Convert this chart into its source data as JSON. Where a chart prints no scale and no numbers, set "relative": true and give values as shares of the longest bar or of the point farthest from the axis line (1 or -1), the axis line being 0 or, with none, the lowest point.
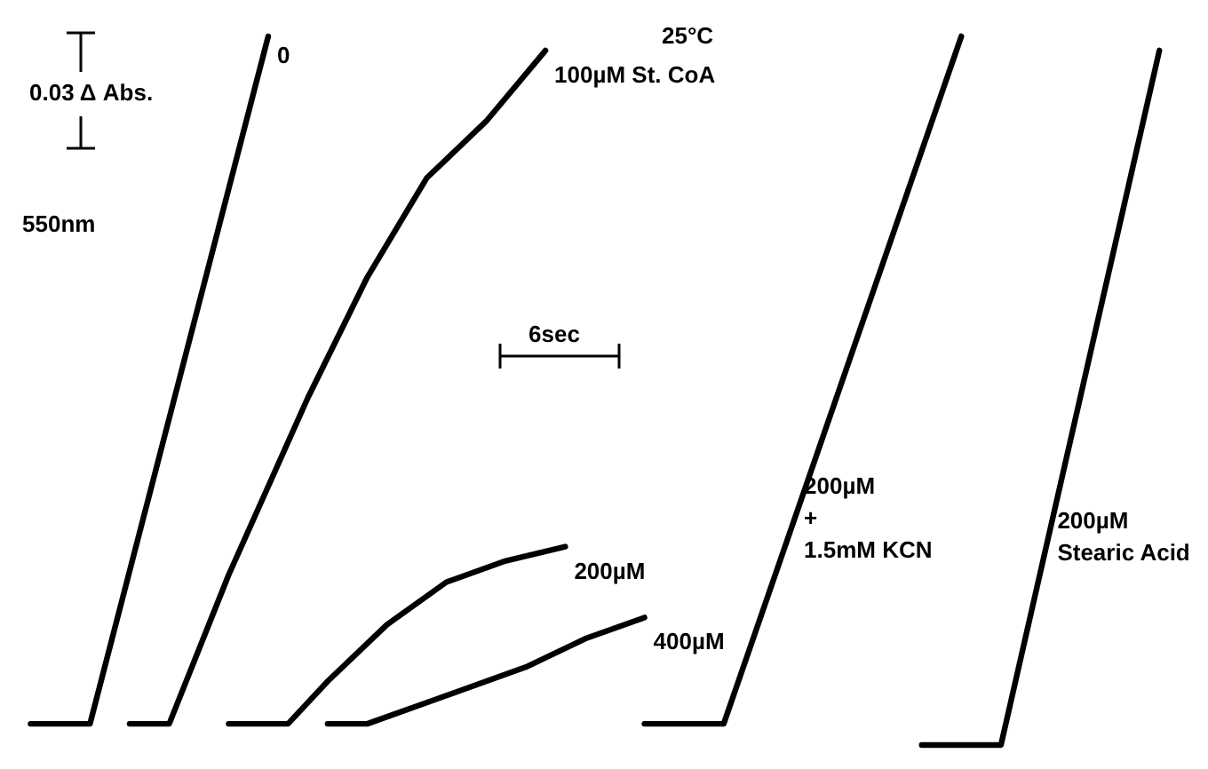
{
  "chart_data": {
    "type": "line",
    "relative": true,
    "tick_labels": false,
    "grid": false,
    "marker": "none",
    "line_style": "solid",
    "categories": [
      null,
      null,
      null,
      null,
      null,
      null,
      null,
      null,
      null,
      null,
      null,
      null,
      null,
      null,
      null,
      null,
      null,
      null,
      null,
      null,
      null,
      null,
      null,
      null,
      null,
      null,
      null,
      null,
      null,
      null,
      null,
      null,
      null,
      null,
      null,
      null,
      null,
      null,
      null,
      null,
      null,
      null,
      null,
      null,
      null,
      null,
      null,
      null,
      null,
      null,
      null,
      null,
      null,
      null,
      null,
      null,
      null,
      null,
      null,
      null,
      null
    ],
    "annotations": [
      "0.03 Δ Abs.",
      "550nm",
      "25°C",
      "6sec"
    ],
    "series": [
      {
        "name": "0",
        "color": "#000000",
        "values": [
          0.03,
          null,
          null,
          0.03,
          null,
          null,
          null,
          null,
          null,
          null,
          null,
          null,
          1.0,
          null,
          null,
          null,
          null,
          null,
          null,
          null,
          null,
          null,
          null,
          null,
          null,
          null,
          null,
          null,
          null,
          null,
          null,
          null,
          null,
          null,
          null,
          null,
          null,
          null,
          null,
          null,
          null,
          null,
          null,
          null,
          null,
          null,
          null,
          null,
          null,
          null,
          null,
          null,
          null,
          null,
          null,
          null,
          null,
          null,
          null,
          null,
          null
        ]
      },
      {
        "name": "100µM St. CoA",
        "color": "#000000",
        "values": [
          null,
          null,
          null,
          null,
          null,
          0.03,
          null,
          0.03,
          null,
          null,
          0.24,
          null,
          null,
          null,
          0.49,
          null,
          null,
          0.66,
          null,
          null,
          0.8,
          null,
          null,
          0.88,
          null,
          null,
          0.98,
          null,
          null,
          null,
          null,
          null,
          null,
          null,
          null,
          null,
          null,
          null,
          null,
          null,
          null,
          null,
          null,
          null,
          null,
          null,
          null,
          null,
          null,
          null,
          null,
          null,
          null,
          null,
          null,
          null,
          null,
          null,
          null,
          null,
          null
        ]
      },
      {
        "name": "200µM",
        "color": "#000000",
        "values": [
          null,
          null,
          null,
          null,
          null,
          null,
          null,
          null,
          null,
          null,
          0.03,
          null,
          null,
          0.03,
          null,
          0.09,
          null,
          null,
          0.17,
          null,
          null,
          0.23,
          null,
          null,
          0.26,
          null,
          null,
          0.28,
          null,
          null,
          null,
          null,
          null,
          null,
          null,
          null,
          null,
          null,
          null,
          null,
          null,
          null,
          null,
          null,
          null,
          null,
          null,
          null,
          null,
          null,
          null,
          null,
          null,
          null,
          null,
          null,
          null,
          null,
          null,
          null,
          null
        ]
      },
      {
        "name": "400µM",
        "color": "#000000",
        "values": [
          null,
          null,
          null,
          null,
          null,
          null,
          null,
          null,
          null,
          null,
          null,
          null,
          null,
          null,
          null,
          0.03,
          null,
          0.03,
          null,
          null,
          0.06,
          null,
          null,
          0.09,
          null,
          0.11,
          null,
          null,
          0.15,
          null,
          null,
          0.18,
          null,
          null,
          null,
          null,
          null,
          null,
          null,
          null,
          null,
          null,
          null,
          null,
          null,
          null,
          null,
          null,
          null,
          null,
          null,
          null,
          null,
          null,
          null,
          null,
          null,
          null,
          null,
          null,
          null
        ]
      },
      {
        "name": "200µM\n+\n1.5mM KCN",
        "color": "#000000",
        "values": [
          null,
          null,
          null,
          null,
          null,
          null,
          null,
          null,
          null,
          null,
          null,
          null,
          null,
          null,
          null,
          null,
          null,
          null,
          null,
          null,
          null,
          null,
          null,
          null,
          null,
          null,
          null,
          null,
          null,
          null,
          null,
          0.03,
          null,
          null,
          null,
          0.03,
          null,
          null,
          null,
          null,
          null,
          null,
          null,
          null,
          null,
          null,
          null,
          1.0,
          null,
          null,
          null,
          null,
          null,
          null,
          null,
          null,
          null,
          null,
          null,
          null,
          null
        ]
      },
      {
        "name": "200µM\nStearic Acid",
        "color": "#000000",
        "values": [
          null,
          null,
          null,
          null,
          null,
          null,
          null,
          null,
          null,
          null,
          null,
          null,
          null,
          null,
          null,
          null,
          null,
          null,
          null,
          null,
          null,
          null,
          null,
          null,
          null,
          null,
          null,
          null,
          null,
          null,
          null,
          null,
          null,
          null,
          null,
          null,
          null,
          null,
          null,
          null,
          null,
          null,
          null,
          null,
          null,
          0.0,
          null,
          null,
          null,
          0.0,
          null,
          null,
          null,
          null,
          null,
          null,
          null,
          0.98,
          null,
          null,
          null
        ]
      }
    ]
  }
}
